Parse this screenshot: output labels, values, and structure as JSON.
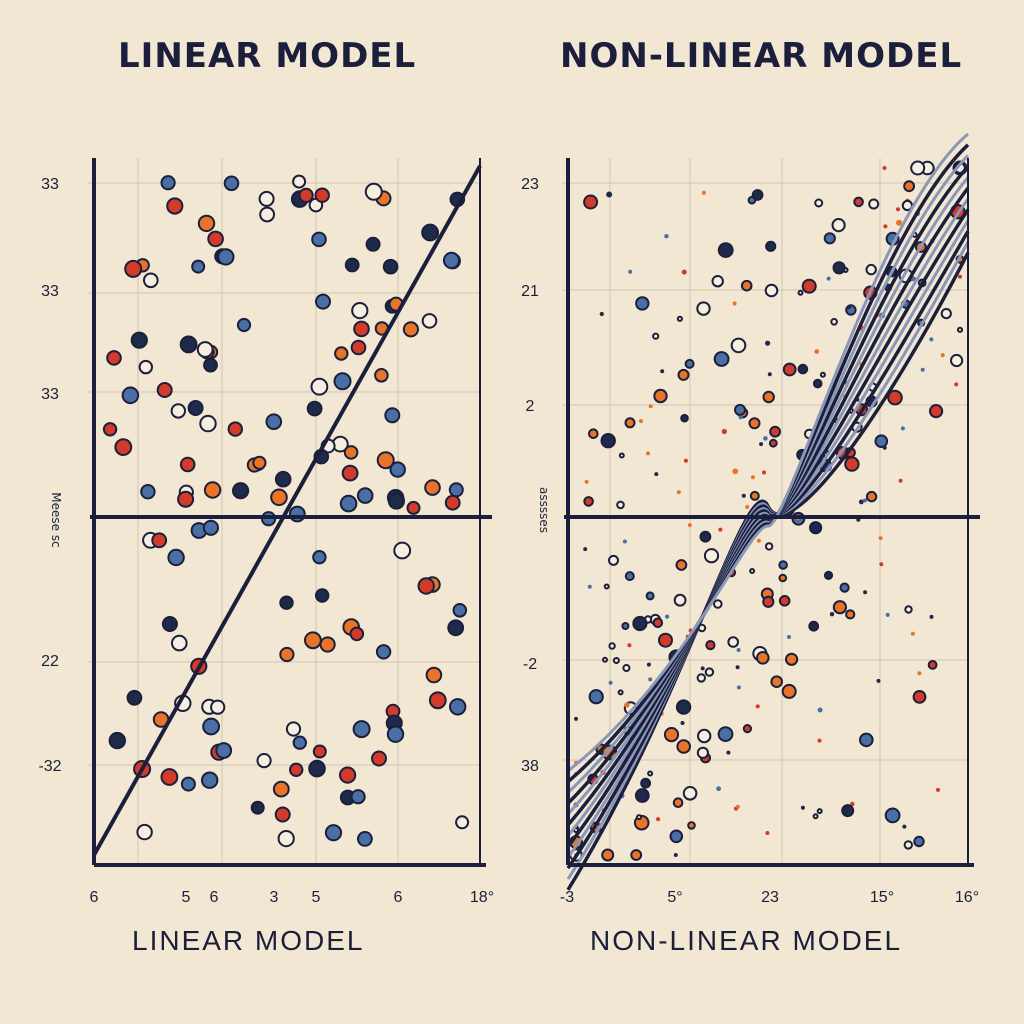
{
  "titles": {
    "left": "LINEAR MODEL",
    "right": "NON-LINEAR MODEL"
  },
  "subtitles": {
    "left": "LINEAR MODEL",
    "right": "NON-LINEAR MODEL"
  },
  "colors": {
    "background": "#f1e7d2",
    "ink": "#1b1f3b",
    "grid": "#cfc6b4",
    "dot_orange": "#e8742a",
    "dot_red": "#d23a2a",
    "dot_navy": "#1e2a4a",
    "dot_blue": "#4a6fa5"
  },
  "chart_data": [
    {
      "type": "scatter",
      "title": "LINEAR MODEL",
      "xlabel": "LINEAR MODEL",
      "ylabel": "",
      "x_tick_labels": [
        "6",
        "5",
        "6",
        "3",
        "5",
        "6",
        "18°"
      ],
      "y_tick_labels": [
        "33",
        "33",
        "33",
        "22",
        "-32"
      ],
      "y_axis_label_glyphs": "Meese sc",
      "fit": {
        "kind": "straight-line",
        "from": "bottom-left",
        "to": "top-right"
      },
      "horizontal_reference_line": true,
      "point_count_estimate": 150
    },
    {
      "type": "scatter",
      "title": "NON-LINEAR MODEL",
      "xlabel": "NON-LINEAR MODEL",
      "ylabel": "",
      "x_tick_labels": [
        "-3",
        "5°",
        "23",
        "15°",
        "16°"
      ],
      "y_tick_labels": [
        "23",
        "21",
        "2",
        "-2",
        "38"
      ],
      "y_axis_label_glyphs": "asssses",
      "fit": {
        "kind": "wavy-band",
        "from": "bottom-left",
        "to": "top-right"
      },
      "horizontal_reference_line": true,
      "point_count_estimate": 300
    }
  ]
}
